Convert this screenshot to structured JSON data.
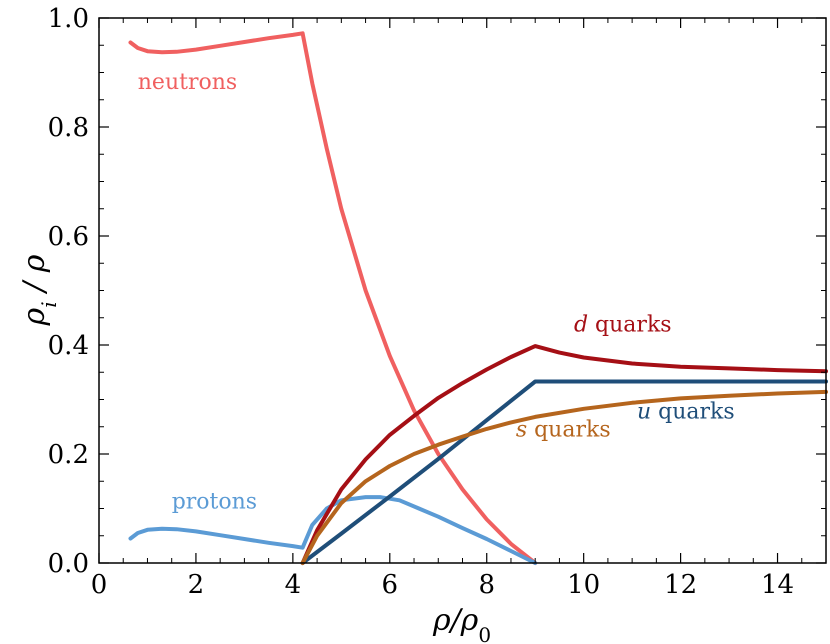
{
  "chart_data": {
    "type": "line",
    "xlabel": "ρ/ρ0",
    "ylabel": "ρi / ρ",
    "xlim": [
      0,
      15
    ],
    "ylim": [
      0,
      1.0
    ],
    "x_ticks": [
      0,
      2,
      4,
      6,
      8,
      10,
      12,
      14
    ],
    "x_tick_labels": [
      "0",
      "2",
      "4",
      "6",
      "8",
      "10",
      "12",
      "14"
    ],
    "y_ticks": [
      0,
      0.2,
      0.4,
      0.6,
      0.8,
      1.0
    ],
    "y_tick_labels": [
      "0.0",
      "0.2",
      "0.4",
      "0.6",
      "0.8",
      "1.0"
    ],
    "grid": false,
    "series": [
      {
        "name": "neutrons",
        "color": "#f06060",
        "x": [
          0.65,
          0.8,
          1.0,
          1.3,
          1.6,
          2.0,
          2.5,
          3.0,
          3.5,
          4.0,
          4.2,
          4.4,
          4.7,
          5.0,
          5.5,
          6.0,
          6.5,
          7.0,
          7.5,
          8.0,
          8.5,
          9.0
        ],
        "y": [
          0.955,
          0.945,
          0.939,
          0.937,
          0.938,
          0.942,
          0.949,
          0.956,
          0.963,
          0.969,
          0.972,
          0.88,
          0.76,
          0.65,
          0.5,
          0.38,
          0.28,
          0.2,
          0.135,
          0.08,
          0.035,
          0.0
        ]
      },
      {
        "name": "protons",
        "color": "#5b9bd5",
        "x": [
          0.65,
          0.8,
          1.0,
          1.3,
          1.6,
          2.0,
          2.5,
          3.0,
          3.5,
          4.0,
          4.2,
          4.4,
          4.7,
          5.0,
          5.5,
          5.8,
          6.2,
          6.6,
          7.0,
          7.5,
          8.0,
          8.5,
          9.0
        ],
        "y": [
          0.045,
          0.055,
          0.061,
          0.063,
          0.062,
          0.058,
          0.051,
          0.044,
          0.037,
          0.031,
          0.028,
          0.07,
          0.1,
          0.115,
          0.121,
          0.121,
          0.115,
          0.1,
          0.085,
          0.064,
          0.044,
          0.022,
          0.0
        ]
      },
      {
        "name": "d quarks",
        "color": "#a50f15",
        "x": [
          4.2,
          4.5,
          5.0,
          5.5,
          6.0,
          6.5,
          7.0,
          7.5,
          8.0,
          8.5,
          9.0,
          9.5,
          10.0,
          11.0,
          12.0,
          13.0,
          14.0,
          15.0
        ],
        "y": [
          0.0,
          0.06,
          0.135,
          0.19,
          0.235,
          0.27,
          0.303,
          0.33,
          0.355,
          0.378,
          0.398,
          0.386,
          0.377,
          0.366,
          0.36,
          0.357,
          0.354,
          0.352
        ]
      },
      {
        "name": "u quarks",
        "color": "#1f4e79",
        "x": [
          4.2,
          5.0,
          6.0,
          7.0,
          8.0,
          9.0,
          10.0,
          11.0,
          12.0,
          13.0,
          14.0,
          15.0
        ],
        "y": [
          0.0,
          0.054,
          0.122,
          0.191,
          0.262,
          0.333,
          0.333,
          0.333,
          0.333,
          0.333,
          0.333,
          0.333
        ]
      },
      {
        "name": "s quarks",
        "color": "#b5651d",
        "x": [
          4.2,
          4.5,
          5.0,
          5.5,
          6.0,
          6.5,
          7.0,
          7.5,
          8.0,
          8.5,
          9.0,
          10.0,
          11.0,
          12.0,
          13.0,
          14.0,
          15.0
        ],
        "y": [
          0.0,
          0.05,
          0.11,
          0.15,
          0.178,
          0.2,
          0.217,
          0.232,
          0.246,
          0.258,
          0.268,
          0.283,
          0.294,
          0.302,
          0.307,
          0.311,
          0.314
        ]
      }
    ],
    "annotations": [
      {
        "series": "neutrons",
        "parts": [
          {
            "t": "neutrons",
            "it": false
          }
        ],
        "x": 0.8,
        "y": 0.87,
        "color": "#f06060"
      },
      {
        "series": "protons",
        "parts": [
          {
            "t": "protons",
            "it": false
          }
        ],
        "x": 1.5,
        "y": 0.1,
        "color": "#5b9bd5"
      },
      {
        "series": "d quarks",
        "parts": [
          {
            "t": "d",
            "it": true
          },
          {
            "t": " quarks",
            "it": false
          }
        ],
        "x": 9.8,
        "y": 0.425,
        "color": "#a50f15"
      },
      {
        "series": "u quarks",
        "parts": [
          {
            "t": "u",
            "it": true
          },
          {
            "t": " quarks",
            "it": false
          }
        ],
        "x": 11.1,
        "y": 0.265,
        "color": "#1f4e79"
      },
      {
        "series": "s quarks",
        "parts": [
          {
            "t": "s",
            "it": true
          },
          {
            "t": " quarks",
            "it": false
          }
        ],
        "x": 8.6,
        "y": 0.232,
        "color": "#b5651d"
      }
    ]
  }
}
